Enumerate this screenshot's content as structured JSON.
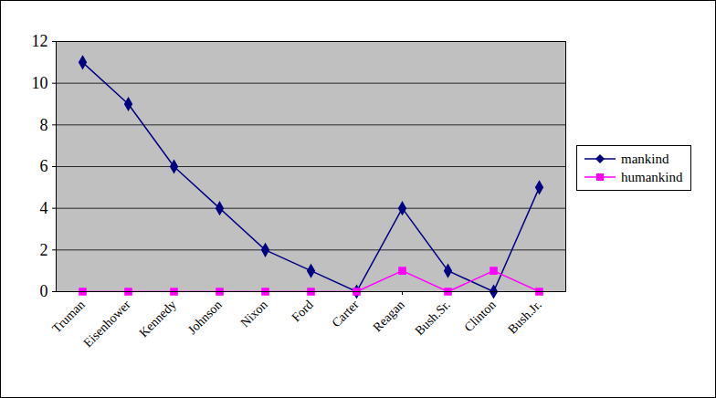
{
  "chart_data": {
    "type": "line",
    "categories": [
      "Truman",
      "Eisenhower",
      "Kennedy",
      "Johnson",
      "Nixon",
      "Ford",
      "Carter",
      "Reagan",
      "Bush.Sr.",
      "Clinton",
      "Bush.Jr."
    ],
    "series": [
      {
        "name": "mankind",
        "color": "#000080",
        "marker": "diamond",
        "values": [
          11,
          9,
          6,
          4,
          2,
          1,
          0,
          4,
          1,
          0,
          5
        ]
      },
      {
        "name": "humankind",
        "color": "#ff00ff",
        "marker": "square",
        "values": [
          0,
          0,
          0,
          0,
          0,
          0,
          0,
          1,
          0,
          1,
          0
        ]
      }
    ],
    "ylim": [
      0,
      12
    ],
    "yticks": [
      0,
      2,
      4,
      6,
      8,
      10,
      12
    ],
    "grid": true,
    "legend": "right"
  }
}
